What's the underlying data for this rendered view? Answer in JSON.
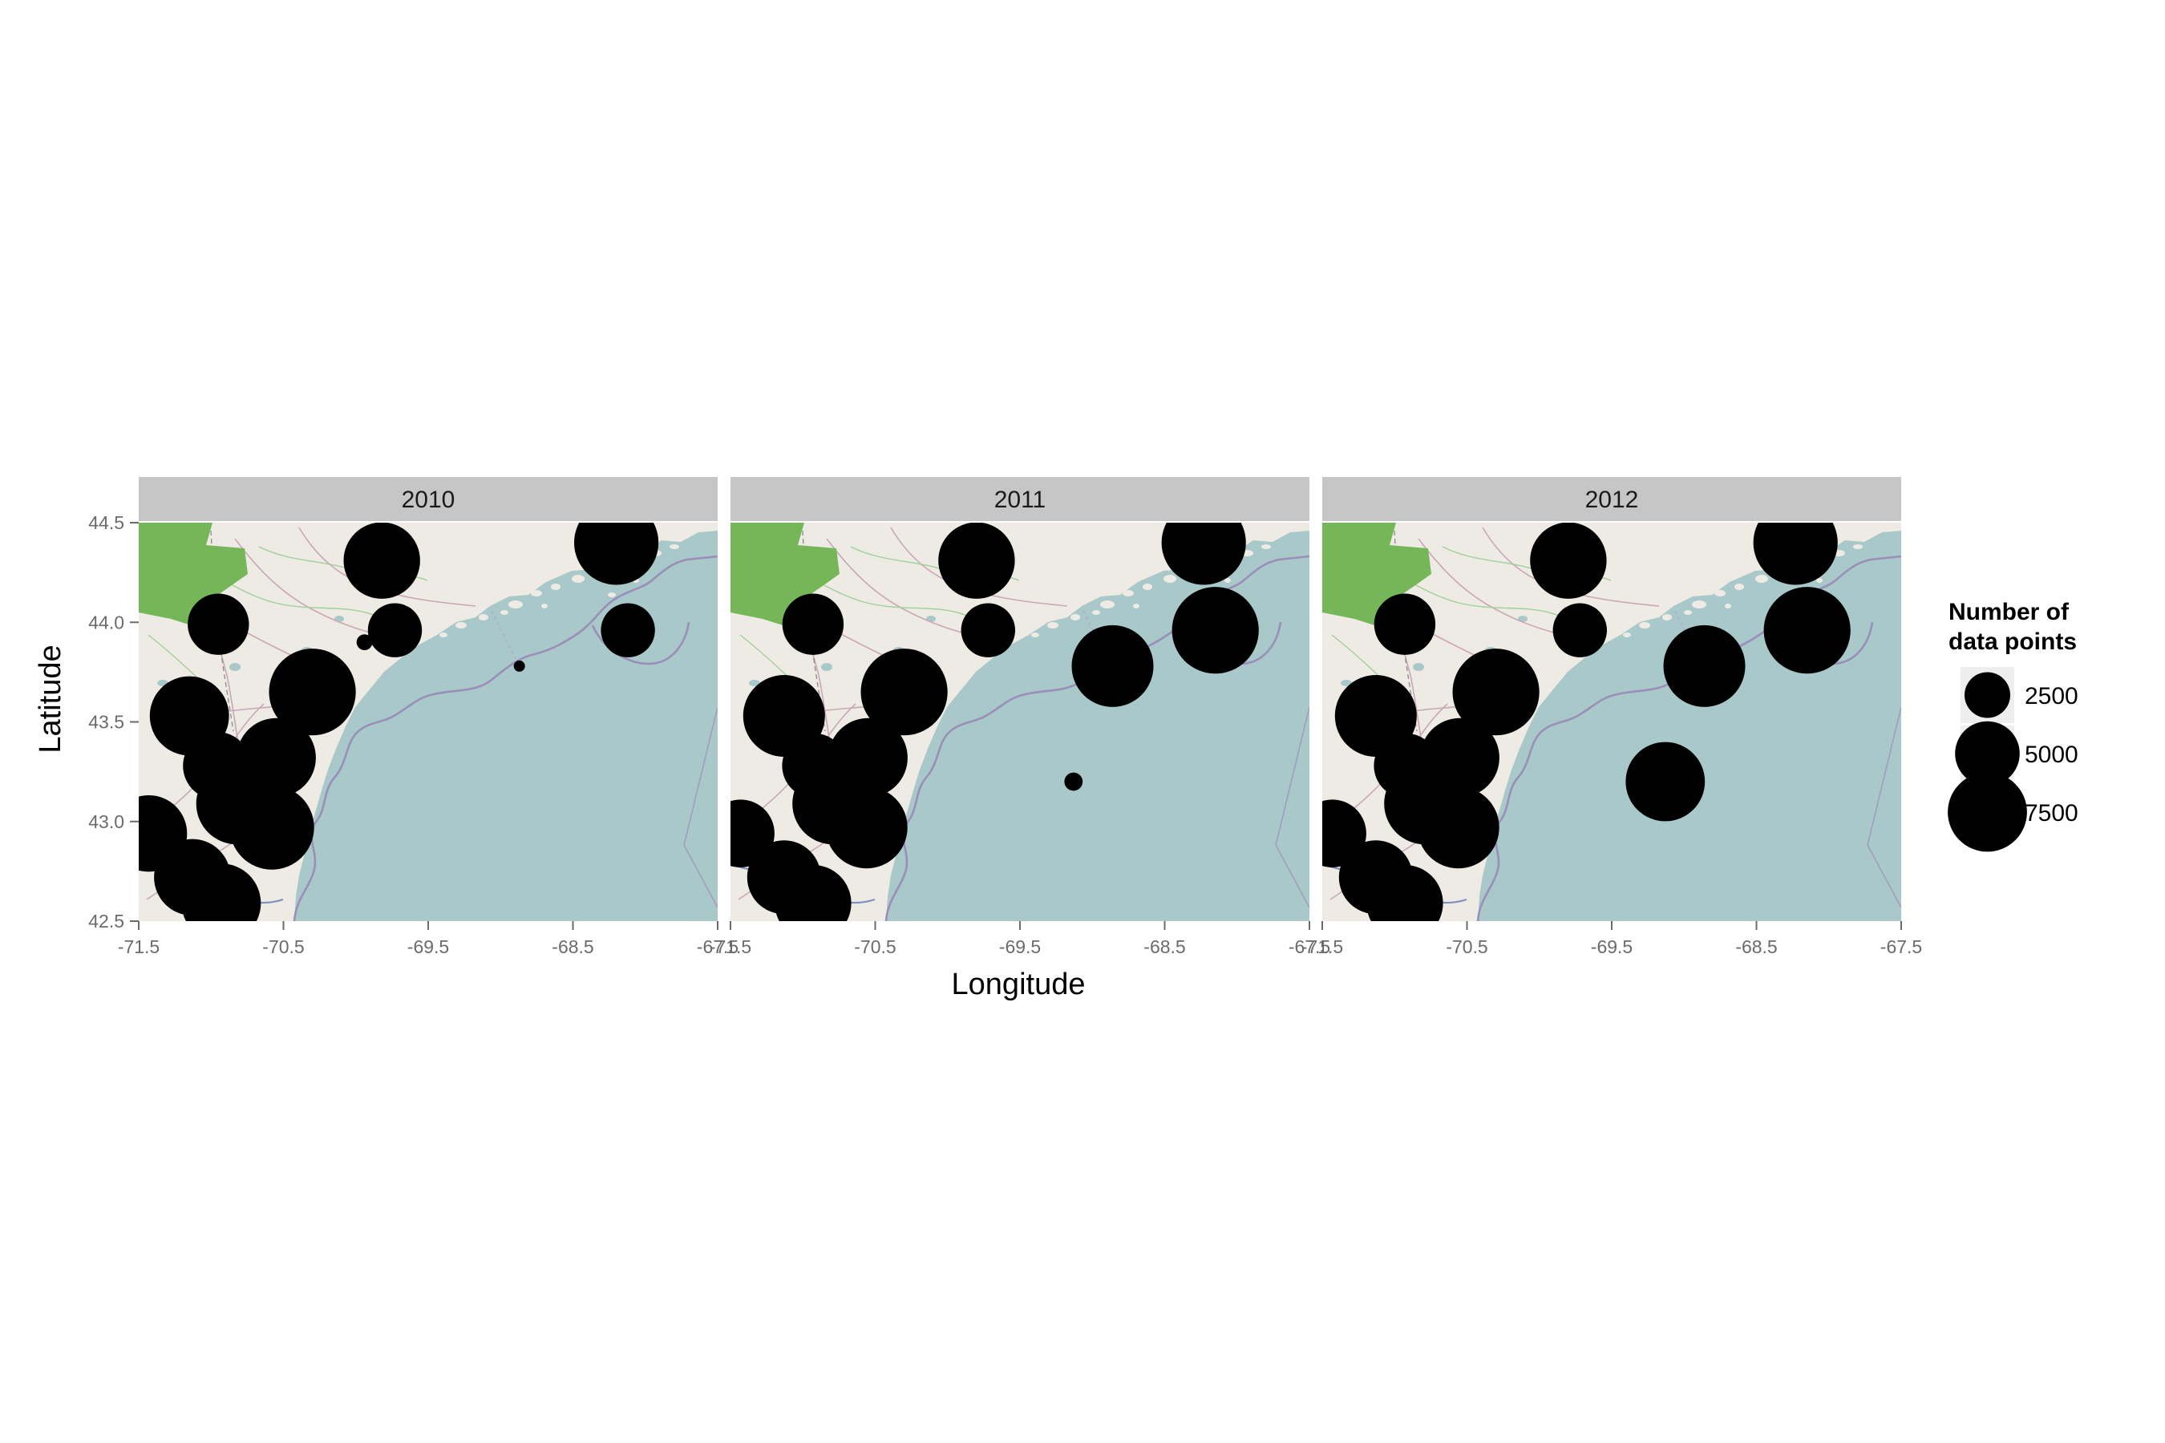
{
  "chart_data": {
    "type": "scatter",
    "subtype": "faceted bubble map",
    "title": "",
    "xlabel": "Longitude",
    "ylabel": "Latitude",
    "xlim": [
      -71.5,
      -67.5
    ],
    "ylim": [
      42.5,
      44.5
    ],
    "x_ticks": [
      "-71.5",
      "-70.5",
      "-69.5",
      "-68.5",
      "-67.5"
    ],
    "x_tick_values": [
      -71.5,
      -70.5,
      -69.5,
      -68.5,
      -67.5
    ],
    "y_ticks": [
      "42.5",
      "43.0",
      "43.5",
      "44.0",
      "44.5"
    ],
    "y_tick_values": [
      42.5,
      43.0,
      43.5,
      44.0,
      44.5
    ],
    "grid": false,
    "legend_placement": "right",
    "legend": {
      "title_lines": [
        "Number of",
        "data points"
      ],
      "entries": [
        {
          "label": "2500",
          "value": 2500
        },
        {
          "label": "5000",
          "value": 5000
        },
        {
          "label": "7500",
          "value": 7500
        }
      ]
    },
    "facets": [
      {
        "label": "2010",
        "points": [
          {
            "lon": -71.43,
            "lat": 42.94,
            "n": 7000
          },
          {
            "lon": -71.13,
            "lat": 42.72,
            "n": 7000
          },
          {
            "lon": -70.93,
            "lat": 42.59,
            "n": 7500
          },
          {
            "lon": -70.96,
            "lat": 43.28,
            "n": 5500
          },
          {
            "lon": -71.15,
            "lat": 43.53,
            "n": 7500
          },
          {
            "lon": -70.95,
            "lat": 43.99,
            "n": 4500
          },
          {
            "lon": -70.82,
            "lat": 43.09,
            "n": 8000
          },
          {
            "lon": -70.58,
            "lat": 42.97,
            "n": 8500
          },
          {
            "lon": -70.55,
            "lat": 43.32,
            "n": 7500
          },
          {
            "lon": -70.3,
            "lat": 43.65,
            "n": 9000
          },
          {
            "lon": -69.82,
            "lat": 44.31,
            "n": 7000
          },
          {
            "lon": -69.73,
            "lat": 43.96,
            "n": 3500
          },
          {
            "lon": -69.94,
            "lat": 43.9,
            "n": 300
          },
          {
            "lon": -68.87,
            "lat": 43.78,
            "n": 150
          },
          {
            "lon": -68.2,
            "lat": 44.4,
            "n": 8500
          },
          {
            "lon": -68.12,
            "lat": 43.96,
            "n": 3500
          }
        ]
      },
      {
        "label": "2011",
        "points": [
          {
            "lon": -71.43,
            "lat": 42.94,
            "n": 5500
          },
          {
            "lon": -71.13,
            "lat": 42.72,
            "n": 6500
          },
          {
            "lon": -70.93,
            "lat": 42.59,
            "n": 7000
          },
          {
            "lon": -70.92,
            "lat": 43.28,
            "n": 5000
          },
          {
            "lon": -71.13,
            "lat": 43.53,
            "n": 8000
          },
          {
            "lon": -70.93,
            "lat": 43.99,
            "n": 4500
          },
          {
            "lon": -70.79,
            "lat": 43.09,
            "n": 8000
          },
          {
            "lon": -70.56,
            "lat": 42.97,
            "n": 8000
          },
          {
            "lon": -70.55,
            "lat": 43.32,
            "n": 7500
          },
          {
            "lon": -70.3,
            "lat": 43.65,
            "n": 9000
          },
          {
            "lon": -69.8,
            "lat": 44.31,
            "n": 7000
          },
          {
            "lon": -69.72,
            "lat": 43.96,
            "n": 3500
          },
          {
            "lon": -69.13,
            "lat": 43.2,
            "n": 400
          },
          {
            "lon": -68.86,
            "lat": 43.78,
            "n": 8000
          },
          {
            "lon": -68.23,
            "lat": 44.4,
            "n": 8500
          },
          {
            "lon": -68.15,
            "lat": 43.96,
            "n": 9000
          }
        ]
      },
      {
        "label": "2012",
        "points": [
          {
            "lon": -71.43,
            "lat": 42.94,
            "n": 5500
          },
          {
            "lon": -71.13,
            "lat": 42.72,
            "n": 6500
          },
          {
            "lon": -70.93,
            "lat": 42.59,
            "n": 7000
          },
          {
            "lon": -70.92,
            "lat": 43.28,
            "n": 5000
          },
          {
            "lon": -71.13,
            "lat": 43.53,
            "n": 8000
          },
          {
            "lon": -70.93,
            "lat": 43.99,
            "n": 4500
          },
          {
            "lon": -70.79,
            "lat": 43.09,
            "n": 8000
          },
          {
            "lon": -70.56,
            "lat": 42.97,
            "n": 8000
          },
          {
            "lon": -70.55,
            "lat": 43.32,
            "n": 7500
          },
          {
            "lon": -70.3,
            "lat": 43.65,
            "n": 9000
          },
          {
            "lon": -69.8,
            "lat": 44.31,
            "n": 7000
          },
          {
            "lon": -69.72,
            "lat": 43.96,
            "n": 3500
          },
          {
            "lon": -69.13,
            "lat": 43.2,
            "n": 7500
          },
          {
            "lon": -68.86,
            "lat": 43.78,
            "n": 8000
          },
          {
            "lon": -68.23,
            "lat": 44.4,
            "n": 8500
          },
          {
            "lon": -68.15,
            "lat": 43.96,
            "n": 9000
          }
        ]
      }
    ],
    "colors": {
      "point": "#000000",
      "strip": "#c6c6c6",
      "water": "#a8c8c9",
      "land": "#eeebe4",
      "park": "#75b758",
      "boundary": "#9a8fb8",
      "legend_key": "#eeeeee",
      "tick_text": "#6b6b6b"
    }
  }
}
